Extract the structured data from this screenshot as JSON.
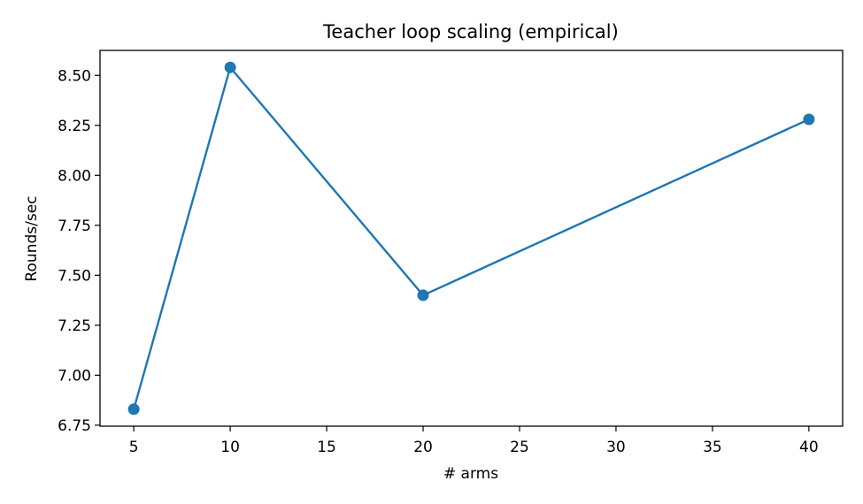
{
  "chart_data": {
    "type": "line",
    "title": "Teacher loop scaling (empirical)",
    "xlabel": "# arms",
    "ylabel": "Rounds/sec",
    "x": [
      5,
      10,
      20,
      40
    ],
    "series": [
      {
        "values": [
          6.83,
          8.54,
          7.4,
          8.28
        ],
        "color": "#1f77b4",
        "marker": "circle"
      }
    ],
    "xlim": [
      3.25,
      41.75
    ],
    "ylim": [
      6.745,
      8.625
    ],
    "xticks": [
      5,
      10,
      15,
      20,
      25,
      30,
      35,
      40
    ],
    "xtick_labels": [
      "5",
      "10",
      "15",
      "20",
      "25",
      "30",
      "35",
      "40"
    ],
    "yticks": [
      6.75,
      7.0,
      7.25,
      7.5,
      7.75,
      8.0,
      8.25,
      8.5
    ],
    "ytick_labels": [
      "6.75",
      "7.00",
      "7.25",
      "7.50",
      "7.75",
      "8.00",
      "8.25",
      "8.50"
    ],
    "grid": false,
    "legend": false
  }
}
